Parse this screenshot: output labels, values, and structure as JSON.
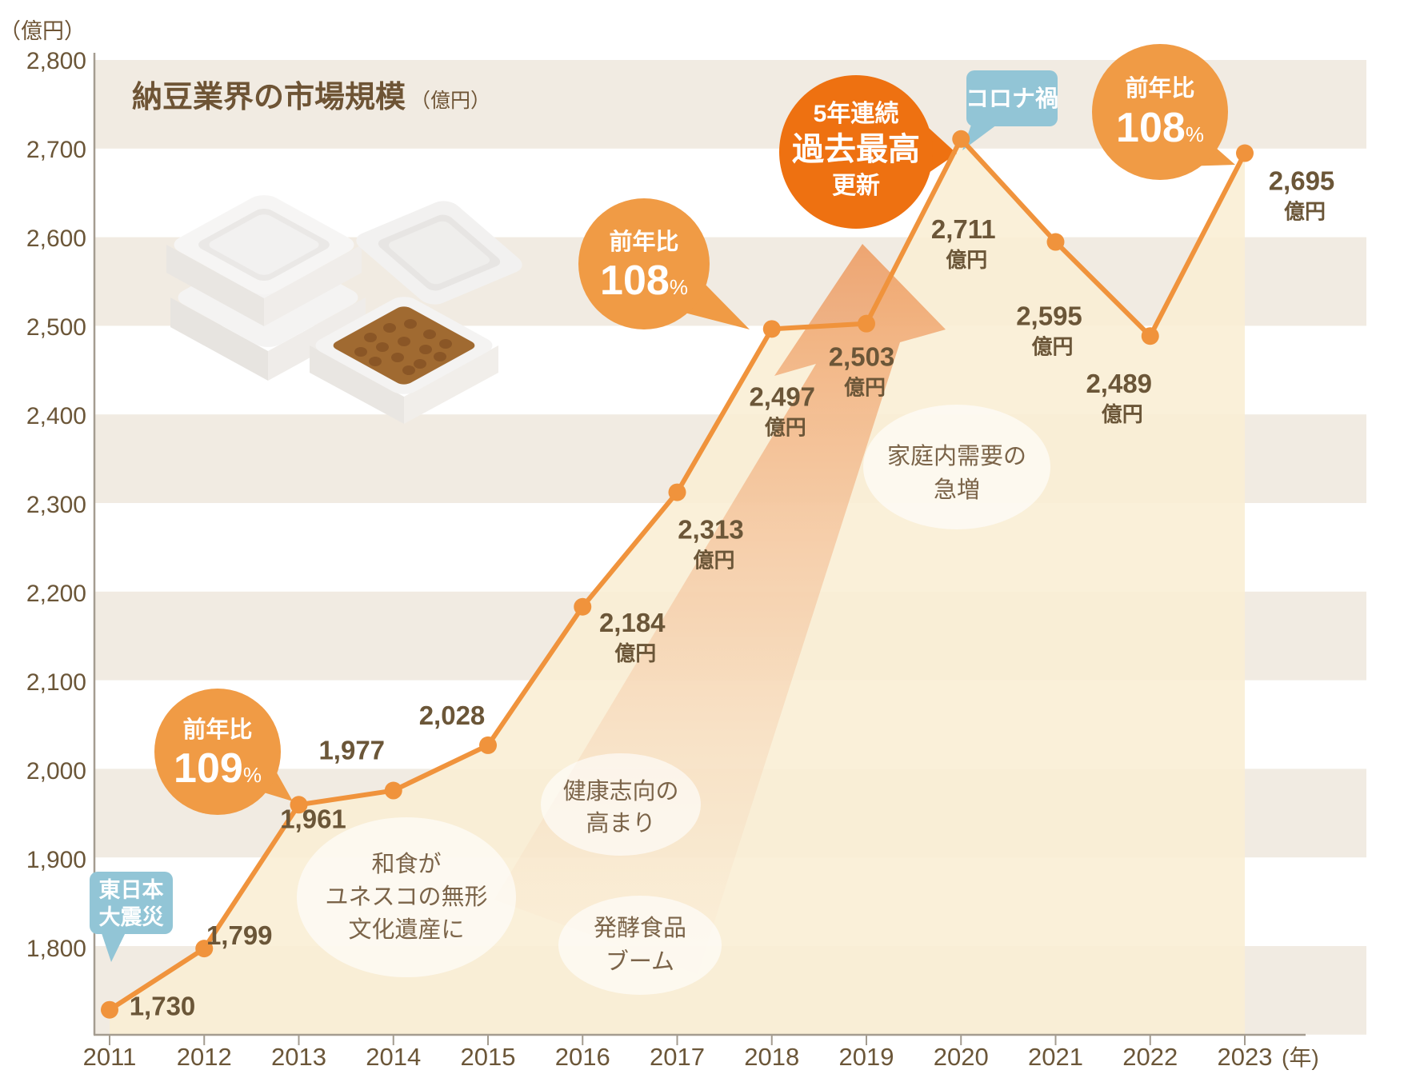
{
  "chart_data": {
    "type": "line",
    "title": "納豆業界の市場規模",
    "title_unit": "（億円）",
    "y_axis_unit": "（億円）",
    "x_suffix": "(年)",
    "value_suffix": "億円",
    "x": [
      2011,
      2012,
      2013,
      2014,
      2015,
      2016,
      2017,
      2018,
      2019,
      2020,
      2021,
      2022,
      2023
    ],
    "values": [
      1730,
      1799,
      1961,
      1977,
      2028,
      2184,
      2313,
      2497,
      2503,
      2711,
      2595,
      2489,
      2695
    ],
    "y_ticks": [
      2800,
      2700,
      2600,
      2500,
      2400,
      2300,
      2200,
      2100,
      2000,
      1900,
      1800
    ],
    "ylim": [
      1700,
      2800
    ],
    "grid": "horizontal-bands",
    "legend": "none",
    "annotations": {
      "yoy_2013": {
        "label": "前年比",
        "value": "109",
        "unit": "%"
      },
      "yoy_2018": {
        "label": "前年比",
        "value": "108",
        "unit": "%"
      },
      "yoy_2023": {
        "label": "前年比",
        "value": "108",
        "unit": "%"
      },
      "record": {
        "line1": "5年連続",
        "line2": "過去最高",
        "line3": "更新"
      },
      "corona": "コロナ禍",
      "earthquake": {
        "line1": "東日本",
        "line2": "大震災"
      },
      "washoku": [
        "和食が",
        "ユネスコの無形",
        "文化遺産に"
      ],
      "health": [
        "健康志向の",
        "高まり"
      ],
      "ferment": [
        "発酵食品",
        "ブーム"
      ],
      "home_demand": [
        "家庭内需要の",
        "急増"
      ]
    },
    "colors": {
      "line": "#F0933C",
      "dot": "#F0933C",
      "stripe_beige": "#F1EBE2",
      "area_cream": "rgba(250,238,213,0.9)",
      "bubble_orange": "#F09B45",
      "record_orange": "#EE7111",
      "tag_blue": "#92C5D6",
      "text_brown": "#6B5638",
      "title_brown": "#6E5435",
      "soft_text_brown": "#7B6449",
      "axis_gray": "#A49C90",
      "arrow_orange": "#EC8A45"
    }
  }
}
